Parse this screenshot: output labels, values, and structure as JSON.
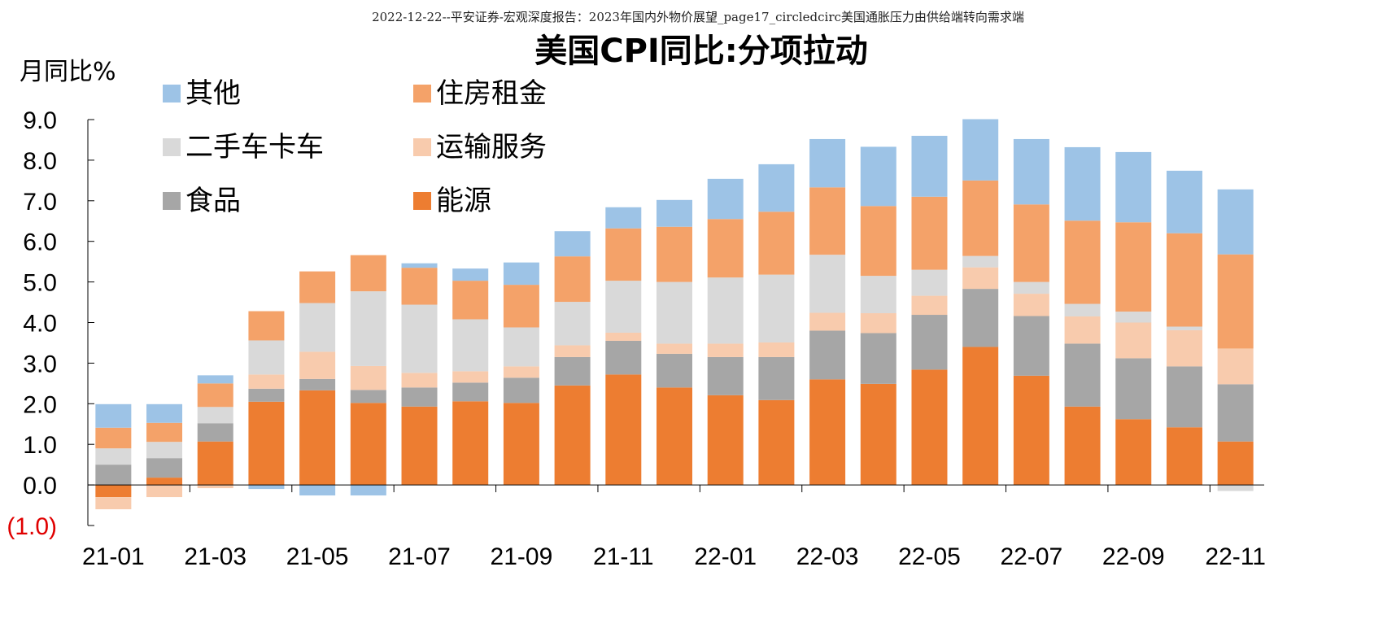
{
  "header": {
    "caption": "2022-12-22--平安证券-宏观深度报告：2023年国内外物价展望_page17_circledcirc美国通胀压力由供给端转向需求端"
  },
  "chart_data": {
    "type": "bar",
    "stacked": true,
    "title": "美国CPI同比:分项拉动",
    "ylabel": "月同比%",
    "xlabel": "",
    "ylim": [
      -1.0,
      9.0
    ],
    "yticks": [
      9.0,
      8.0,
      7.0,
      6.0,
      5.0,
      4.0,
      3.0,
      2.0,
      1.0,
      0.0,
      -1.0
    ],
    "ytick_labels": [
      "9.0",
      "8.0",
      "7.0",
      "6.0",
      "5.0",
      "4.0",
      "3.0",
      "2.0",
      "1.0",
      "0.0",
      "(1.0)"
    ],
    "grid": false,
    "legend_position": "top-left",
    "categories": [
      "21-01",
      "21-02",
      "21-03",
      "21-04",
      "21-05",
      "21-06",
      "21-07",
      "21-08",
      "21-09",
      "21-10",
      "21-11",
      "21-12",
      "22-01",
      "22-02",
      "22-03",
      "22-04",
      "22-05",
      "22-06",
      "22-07",
      "22-08",
      "22-09",
      "22-10",
      "22-11"
    ],
    "xtick_labels": [
      "21-01",
      "21-03",
      "21-05",
      "21-07",
      "21-09",
      "21-11",
      "22-01",
      "22-03",
      "22-05",
      "22-07",
      "22-09",
      "22-11"
    ],
    "series": [
      {
        "name": "能源",
        "color": "#ED7D31",
        "values": [
          -0.3,
          0.18,
          1.07,
          2.05,
          2.33,
          2.02,
          1.93,
          2.06,
          2.02,
          2.45,
          2.72,
          2.4,
          2.21,
          2.09,
          2.6,
          2.49,
          2.84,
          3.4,
          2.69,
          1.93,
          1.62,
          1.42,
          1.07
        ]
      },
      {
        "name": "食品",
        "color": "#A6A6A6",
        "values": [
          0.5,
          0.48,
          0.45,
          0.32,
          0.28,
          0.32,
          0.47,
          0.46,
          0.62,
          0.7,
          0.83,
          0.83,
          0.94,
          1.06,
          1.2,
          1.25,
          1.35,
          1.43,
          1.47,
          1.55,
          1.5,
          1.5,
          1.41
        ]
      },
      {
        "name": "运输服务",
        "color": "#F8CBAD",
        "values": [
          -0.3,
          -0.3,
          -0.08,
          0.35,
          0.67,
          0.59,
          0.36,
          0.28,
          0.28,
          0.29,
          0.2,
          0.25,
          0.33,
          0.36,
          0.44,
          0.49,
          0.47,
          0.53,
          0.55,
          0.67,
          0.88,
          0.89,
          0.88
        ]
      },
      {
        "name": "二手车卡车",
        "color": "#D9D9D9",
        "values": [
          0.4,
          0.4,
          0.4,
          0.84,
          1.2,
          1.84,
          1.68,
          1.28,
          0.96,
          1.07,
          1.28,
          1.52,
          1.63,
          1.67,
          1.43,
          0.92,
          0.64,
          0.28,
          0.29,
          0.31,
          0.27,
          0.09,
          -0.15
        ]
      },
      {
        "name": "住房租金",
        "color": "#F4A269",
        "values": [
          0.51,
          0.47,
          0.58,
          0.72,
          0.78,
          0.89,
          0.91,
          0.95,
          1.05,
          1.12,
          1.29,
          1.36,
          1.44,
          1.55,
          1.66,
          1.72,
          1.8,
          1.86,
          1.91,
          2.05,
          2.2,
          2.3,
          2.32
        ]
      },
      {
        "name": "其他",
        "color": "#9DC3E6",
        "values": [
          0.58,
          0.46,
          0.2,
          -0.1,
          -0.26,
          -0.26,
          0.11,
          0.3,
          0.55,
          0.62,
          0.52,
          0.66,
          0.99,
          1.17,
          1.19,
          1.46,
          1.5,
          1.51,
          1.61,
          1.81,
          1.73,
          1.54,
          1.6
        ]
      }
    ]
  }
}
